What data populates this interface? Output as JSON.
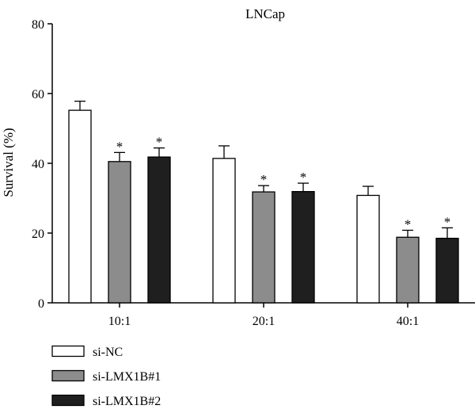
{
  "chart_data": {
    "type": "bar",
    "title": "LNCap",
    "xlabel": "",
    "ylabel": "Survival (%)",
    "ylim": [
      0,
      80
    ],
    "yticks": [
      0,
      20,
      40,
      60,
      80
    ],
    "categories": [
      "10:1",
      "20:1",
      "40:1"
    ],
    "series": [
      {
        "name": "si-NC",
        "color": "#ffffff",
        "values": [
          55.2,
          41.4,
          30.8
        ],
        "errors": [
          2.6,
          3.6,
          2.6
        ],
        "significant": [
          false,
          false,
          false
        ]
      },
      {
        "name": "si-LMX1B#1",
        "color": "#8c8c8c",
        "values": [
          40.5,
          31.8,
          18.8
        ],
        "errors": [
          2.6,
          1.8,
          2.0
        ],
        "significant": [
          true,
          true,
          true
        ]
      },
      {
        "name": "si-LMX1B#2",
        "color": "#1f1f1f",
        "values": [
          41.8,
          31.9,
          18.5
        ],
        "errors": [
          2.6,
          2.4,
          3.0
        ],
        "significant": [
          true,
          true,
          true
        ]
      }
    ],
    "significance_marker": "*",
    "legend_position": "bottom-left",
    "grid": false
  }
}
